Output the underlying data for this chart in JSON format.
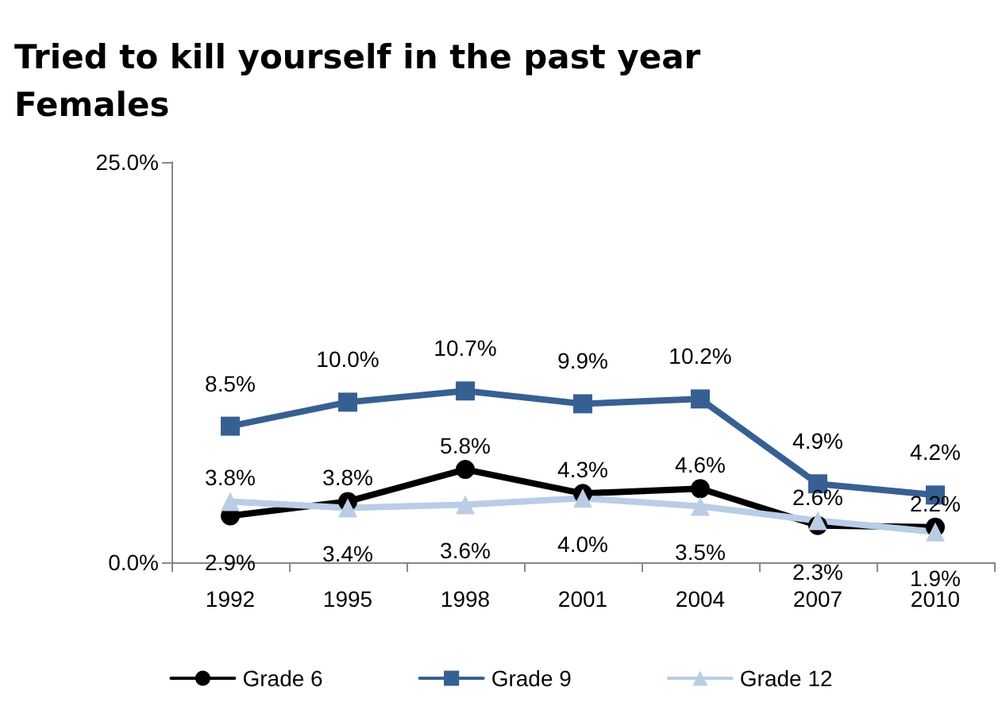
{
  "chart_data": {
    "type": "line",
    "title": "Tried to kill yourself in the past year\nFemales",
    "categories": [
      "1992",
      "1995",
      "1998",
      "2001",
      "2004",
      "2007",
      "2010"
    ],
    "series": [
      {
        "name": "Grade 6",
        "color": "#000000",
        "marker": "circle",
        "values": [
          2.9,
          3.8,
          5.8,
          4.3,
          4.6,
          2.3,
          2.2
        ],
        "value_labels": [
          "2.9%",
          "3.8%",
          "5.8%",
          "4.3%",
          "4.6%",
          "2.3%",
          "2.2%"
        ]
      },
      {
        "name": "Grade 9",
        "color": "#376092",
        "marker": "square",
        "values": [
          8.5,
          10.0,
          10.7,
          9.9,
          10.2,
          4.9,
          4.2
        ],
        "value_labels": [
          "8.5%",
          "10.0%",
          "10.7%",
          "9.9%",
          "10.2%",
          "4.9%",
          "4.2%"
        ]
      },
      {
        "name": "Grade 12",
        "color": "#b9cde5",
        "marker": "triangle",
        "values": [
          3.8,
          3.4,
          3.6,
          4.0,
          3.5,
          2.6,
          1.9
        ],
        "value_labels": [
          "3.8%",
          "3.4%",
          "3.6%",
          "4.0%",
          "3.5%",
          "2.6%",
          "1.9%"
        ]
      }
    ],
    "ylim": [
      0,
      25
    ],
    "yticks": [
      {
        "value": 0,
        "label": "0.0%"
      },
      {
        "value": 25,
        "label": "25.0%"
      }
    ],
    "grid": false,
    "legend": "bottom",
    "line_style": "solid"
  }
}
